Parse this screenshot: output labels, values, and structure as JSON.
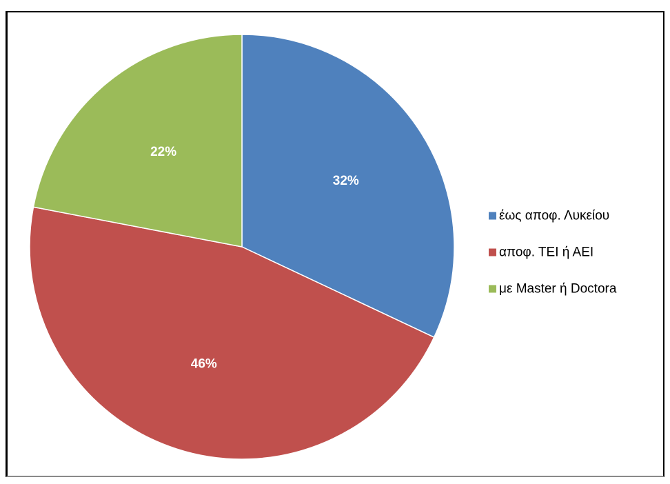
{
  "chart_data": {
    "type": "pie",
    "title": "",
    "categories": [
      "έως αποφ. Λυκείου",
      "αποφ. ΤΕΙ ή ΑΕΙ",
      "με Master ή Doctora"
    ],
    "values": [
      32,
      46,
      22
    ],
    "data_labels": [
      "32%",
      "46%",
      "22%"
    ],
    "colors": [
      "#4f81bd",
      "#c0504d",
      "#9bbb59"
    ],
    "legend_position": "right",
    "start_angle": "12 o'clock",
    "direction": "clockwise"
  }
}
